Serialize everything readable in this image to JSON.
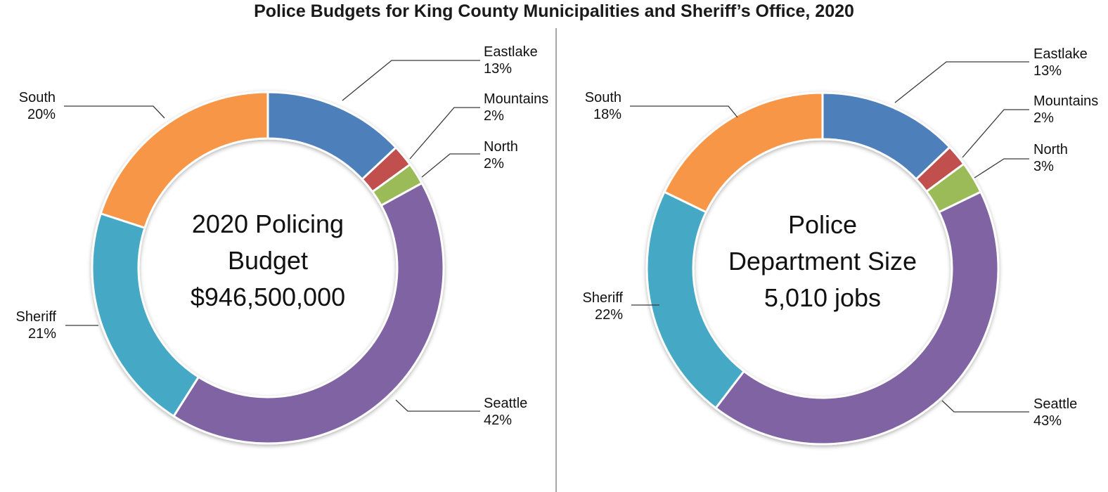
{
  "title": "Police Budgets for King County Municipalities and Sheriff’s Office, 2020",
  "chart_data": [
    {
      "type": "pie",
      "subtype": "donut",
      "name": "2020 Policing Budget",
      "center_label": [
        "2020 Policing",
        "Budget",
        "$946,500,000"
      ],
      "categories": [
        "Eastlake",
        "Mountains",
        "North",
        "Seattle",
        "Sheriff",
        "South"
      ],
      "values": [
        13,
        2,
        2,
        42,
        21,
        20
      ],
      "pct_labels": [
        "13%",
        "2%",
        "2%",
        "42%",
        "21%",
        "20%"
      ],
      "unit": "percent",
      "colors": [
        "#4E7FBB",
        "#C0504D",
        "#9BBB59",
        "#8064A2",
        "#45A9C5",
        "#F79646"
      ],
      "legend_position": "callout-labels",
      "start_angle_deg": 0,
      "direction": "clockwise"
    },
    {
      "type": "pie",
      "subtype": "donut",
      "name": "Police Department Size",
      "center_label": [
        "Police",
        "Department Size",
        "5,010 jobs"
      ],
      "categories": [
        "Eastlake",
        "Mountains",
        "North",
        "Seattle",
        "Sheriff",
        "South"
      ],
      "values": [
        13,
        2,
        3,
        43,
        22,
        18
      ],
      "pct_labels": [
        "13%",
        "2%",
        "3%",
        "43%",
        "22%",
        "18%"
      ],
      "unit": "percent",
      "colors": [
        "#4E7FBB",
        "#C0504D",
        "#9BBB59",
        "#8064A2",
        "#45A9C5",
        "#F79646"
      ],
      "legend_position": "callout-labels",
      "start_angle_deg": 0,
      "direction": "clockwise"
    }
  ],
  "divider": {
    "present": true,
    "color": "#a6a6a6"
  }
}
